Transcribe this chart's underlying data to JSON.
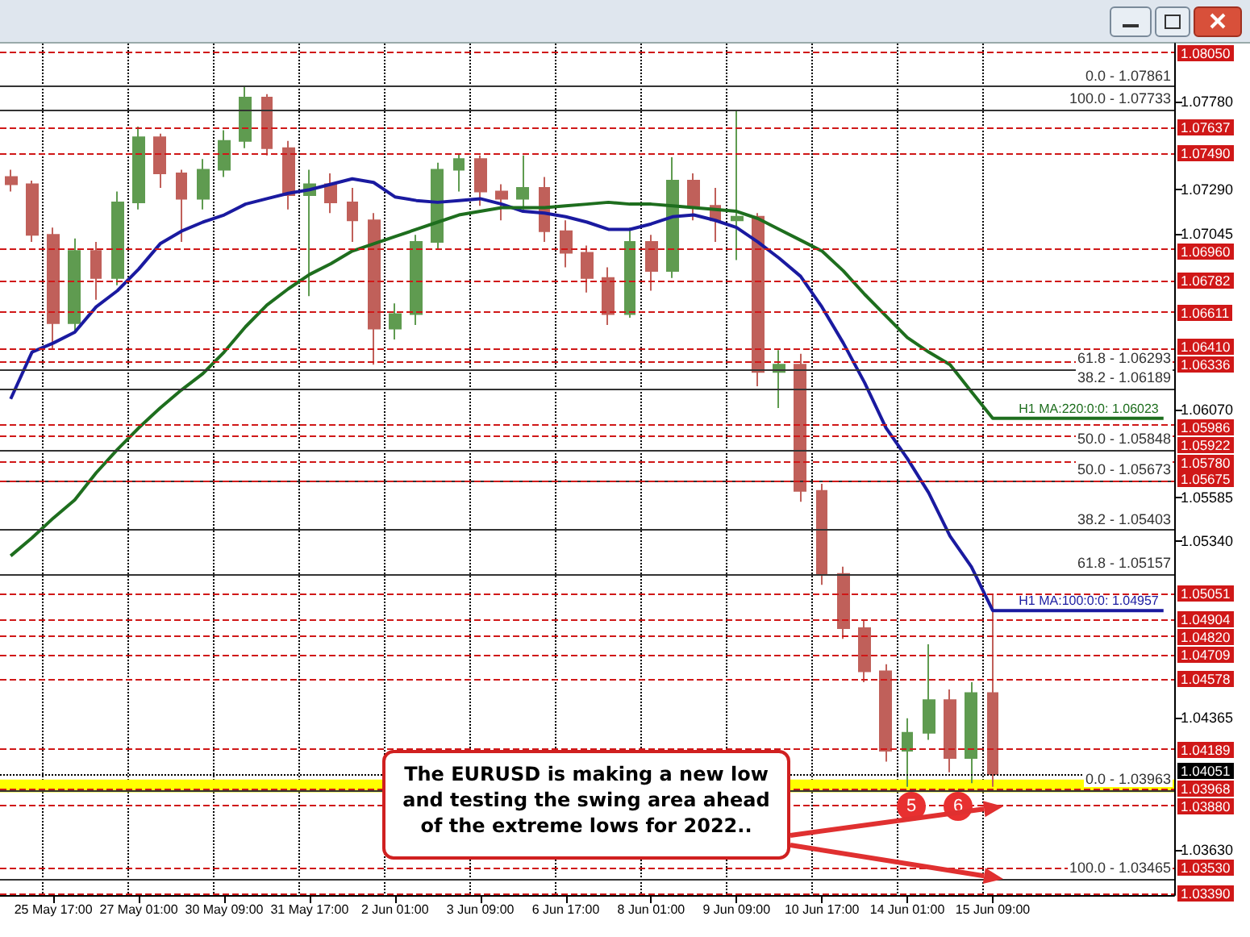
{
  "chart_data": {
    "type": "candlestick",
    "categories": [
      null,
      null,
      "25 May 17:00",
      null,
      null,
      null,
      "27 May 01:00",
      null,
      null,
      null,
      "30 May 09:00",
      null,
      null,
      null,
      "31 May 17:00",
      null,
      null,
      null,
      "2 Jun 01:00",
      null,
      null,
      null,
      "3 Jun 09:00",
      null,
      null,
      null,
      "6 Jun 17:00",
      null,
      null,
      null,
      "8 Jun 01:00",
      null,
      null,
      null,
      "9 Jun 09:00",
      null,
      null,
      null,
      "10 Jun 17:00",
      null,
      null,
      null,
      "14 Jun 01:00",
      null,
      null,
      null,
      "15 Jun 09:00",
      null,
      null,
      null,
      null,
      null,
      null,
      null,
      null
    ],
    "ohlc": [
      [
        1.0736,
        1.074,
        1.0728,
        1.0732
      ],
      [
        1.0732,
        1.0734,
        1.07,
        1.0704
      ],
      [
        1.0704,
        1.0708,
        1.0641,
        1.0655
      ],
      [
        1.0655,
        1.0702,
        1.065,
        1.0695
      ],
      [
        1.0695,
        1.07,
        1.0668,
        1.068
      ],
      [
        1.068,
        1.0728,
        1.0676,
        1.0722
      ],
      [
        1.0722,
        1.0764,
        1.0718,
        1.0758
      ],
      [
        1.0758,
        1.076,
        1.073,
        1.0738
      ],
      [
        1.0738,
        1.074,
        1.07,
        1.0724
      ],
      [
        1.0724,
        1.0746,
        1.0718,
        1.074
      ],
      [
        1.074,
        1.0762,
        1.0736,
        1.0756
      ],
      [
        1.0756,
        1.0786,
        1.0752,
        1.078
      ],
      [
        1.078,
        1.0782,
        1.0748,
        1.0752
      ],
      [
        1.0752,
        1.0756,
        1.0718,
        1.0726
      ],
      [
        1.0726,
        1.074,
        1.067,
        1.0732
      ],
      [
        1.0732,
        1.0738,
        1.0716,
        1.0722
      ],
      [
        1.0722,
        1.073,
        1.07,
        1.0712
      ],
      [
        1.0712,
        1.0716,
        1.0632,
        1.0652
      ],
      [
        1.0652,
        1.0666,
        1.0646,
        1.066
      ],
      [
        1.066,
        1.0704,
        1.0654,
        1.07
      ],
      [
        1.07,
        1.0744,
        1.0696,
        1.074
      ],
      [
        1.074,
        1.0749,
        1.0728,
        1.0746
      ],
      [
        1.0746,
        1.0748,
        1.072,
        1.0728
      ],
      [
        1.0728,
        1.0732,
        1.0712,
        1.0724
      ],
      [
        1.0724,
        1.0748,
        1.0718,
        1.073
      ],
      [
        1.073,
        1.0736,
        1.07,
        1.0706
      ],
      [
        1.0706,
        1.0712,
        1.0686,
        1.0694
      ],
      [
        1.0694,
        1.0698,
        1.0672,
        1.068
      ],
      [
        1.068,
        1.0686,
        1.0654,
        1.066
      ],
      [
        1.066,
        1.0708,
        1.0658,
        1.07
      ],
      [
        1.07,
        1.0704,
        1.0673,
        1.0684
      ],
      [
        1.0684,
        1.0747,
        1.068,
        1.0734
      ],
      [
        1.0734,
        1.0738,
        1.0712,
        1.072
      ],
      [
        1.072,
        1.073,
        1.07,
        1.0712
      ],
      [
        1.0712,
        1.0773,
        1.069,
        1.0714
      ],
      [
        1.0714,
        1.0716,
        1.062,
        1.0628
      ],
      [
        1.0628,
        1.064,
        1.0608,
        1.0632
      ],
      [
        1.0632,
        1.0638,
        1.0556,
        1.0562
      ],
      [
        1.0562,
        1.0566,
        1.051,
        1.0516
      ],
      [
        1.0516,
        1.052,
        1.048,
        1.0486
      ],
      [
        1.0486,
        1.049,
        1.0456,
        1.0462
      ],
      [
        1.0462,
        1.0466,
        1.0412,
        1.0418
      ],
      [
        1.0418,
        1.0436,
        1.0398,
        1.0428
      ],
      [
        1.0428,
        1.0477,
        1.0424,
        1.0446
      ],
      [
        1.0446,
        1.0452,
        1.0406,
        1.0414
      ],
      [
        1.0414,
        1.0456,
        1.04,
        1.045
      ],
      [
        1.045,
        1.0505,
        1.0398,
        1.0405
      ],
      null,
      null,
      null,
      null,
      null,
      null,
      null,
      null
    ],
    "colors": [
      "#c0605a",
      "#c0605a",
      "#c0605a",
      "#5f9b50",
      "#c0605a",
      "#5f9b50",
      "#5f9b50",
      "#c0605a",
      "#c0605a",
      "#5f9b50",
      "#5f9b50",
      "#5f9b50",
      "#c0605a",
      "#c0605a",
      "#5f9b50",
      "#c0605a",
      "#c0605a",
      "#c0605a",
      "#5f9b50",
      "#5f9b50",
      "#5f9b50",
      "#5f9b50",
      "#c0605a",
      "#c0605a",
      "#5f9b50",
      "#c0605a",
      "#c0605a",
      "#c0605a",
      "#c0605a",
      "#5f9b50",
      "#c0605a",
      "#5f9b50",
      "#c0605a",
      "#c0605a",
      "#5f9b50",
      "#c0605a",
      "#5f9b50",
      "#c0605a",
      "#c0605a",
      "#c0605a",
      "#c0605a",
      "#c0605a",
      "#5f9b50",
      "#5f9b50",
      "#c0605a",
      "#5f9b50",
      "#c0605a",
      null,
      null,
      null,
      null,
      null,
      null,
      null,
      null
    ],
    "series": [
      {
        "type": "line",
        "name": "H1 MA:100:0:0: 1.04957",
        "color": "#1a1aa0",
        "values": [
          1.0613,
          1.0639,
          1.0644,
          1.065,
          1.0664,
          1.0673,
          1.0685,
          1.0699,
          1.0706,
          1.0711,
          1.0715,
          1.0721,
          1.0724,
          1.0727,
          1.0729,
          1.0732,
          1.0735,
          1.0733,
          1.0725,
          1.0723,
          1.0722,
          1.0723,
          1.0724,
          1.0721,
          1.0717,
          1.0716,
          1.0714,
          1.0711,
          1.0707,
          1.0707,
          1.071,
          1.0714,
          1.0715,
          1.0712,
          1.0708,
          1.07,
          1.0691,
          1.0681,
          1.0664,
          1.0644,
          1.0622,
          1.0597,
          1.058,
          1.0561,
          1.0537,
          1.052,
          1.04957,
          1.04957,
          1.04957,
          1.04957,
          1.04957,
          1.04957,
          1.04957,
          1.04957,
          1.04957
        ]
      },
      {
        "type": "line",
        "name": "H1 MA:220:0:0: 1.06023",
        "color": "#1e6e1e",
        "values": [
          1.0526,
          1.0536,
          1.0547,
          1.0557,
          1.0572,
          1.0585,
          1.0597,
          1.0608,
          1.0618,
          1.0627,
          1.0639,
          1.0653,
          1.0665,
          1.0674,
          1.0682,
          1.0688,
          1.0695,
          1.0699,
          1.0703,
          1.0707,
          1.0711,
          1.0715,
          1.0717,
          1.0719,
          1.0719,
          1.0719,
          1.072,
          1.0721,
          1.0722,
          1.0721,
          1.0721,
          1.072,
          1.0719,
          1.0718,
          1.0717,
          1.0713,
          1.0707,
          1.0701,
          1.0695,
          1.0684,
          1.0671,
          1.0659,
          1.0647,
          1.0639,
          1.0632,
          1.0617,
          1.06023,
          1.06023,
          1.06023,
          1.06023,
          1.06023,
          1.06023,
          1.06023,
          1.06023,
          1.06023
        ]
      }
    ],
    "ylim": [
      1.0338,
      1.081
    ],
    "yticks": [
      {
        "value": 1.0778,
        "label": "1.07780"
      },
      {
        "value": 1.0729,
        "label": "1.07290"
      },
      {
        "value": 1.07045,
        "label": "1.07045"
      },
      {
        "value": 1.0607,
        "label": "1.06070"
      },
      {
        "value": 1.05585,
        "label": "1.05585"
      },
      {
        "value": 1.0534,
        "label": "1.05340"
      },
      {
        "value": 1.04365,
        "label": "1.04365"
      },
      {
        "value": 1.0363,
        "label": "1.03630"
      }
    ],
    "grid": "x",
    "ref_lines": [
      {
        "axis": "y",
        "value": 1.0805,
        "label": "1.08050",
        "color": "#d01818",
        "line_style": "dashed"
      },
      {
        "axis": "y",
        "value": 1.07637,
        "label": "1.07637",
        "color": "#d01818",
        "line_style": "dashed"
      },
      {
        "axis": "y",
        "value": 1.0749,
        "label": "1.07490",
        "color": "#d01818",
        "line_style": "dashed"
      },
      {
        "axis": "y",
        "value": 1.0696,
        "label": "1.06960",
        "color": "#d01818",
        "line_style": "dashed"
      },
      {
        "axis": "y",
        "value": 1.06782,
        "label": "1.06782",
        "color": "#d01818",
        "line_style": "dashed"
      },
      {
        "axis": "y",
        "value": 1.06611,
        "label": "1.06611",
        "color": "#d01818",
        "line_style": "dashed"
      },
      {
        "axis": "y",
        "value": 1.0641,
        "label": "1.06410",
        "color": "#d01818",
        "line_style": "dashed"
      },
      {
        "axis": "y",
        "value": 1.06336,
        "label": "1.06336",
        "color": "#d01818",
        "line_style": "dashed"
      },
      {
        "axis": "y",
        "value": 1.05986,
        "label": "1.05986",
        "color": "#d01818",
        "line_style": "dashed"
      },
      {
        "axis": "y",
        "value": 1.05922,
        "label": "1.05922",
        "color": "#d01818",
        "line_style": "dashed"
      },
      {
        "axis": "y",
        "value": 1.0578,
        "label": "1.05780",
        "color": "#d01818",
        "line_style": "dashed"
      },
      {
        "axis": "y",
        "value": 1.05675,
        "label": "1.05675",
        "color": "#d01818",
        "line_style": "dashed"
      },
      {
        "axis": "y",
        "value": 1.05051,
        "label": "1.05051",
        "color": "#d01818",
        "line_style": "dashed"
      },
      {
        "axis": "y",
        "value": 1.04904,
        "label": "1.04904",
        "color": "#d01818",
        "line_style": "dashed"
      },
      {
        "axis": "y",
        "value": 1.0482,
        "label": "1.04820",
        "color": "#d01818",
        "line_style": "dashed"
      },
      {
        "axis": "y",
        "value": 1.04709,
        "label": "1.04709",
        "color": "#d01818",
        "line_style": "dashed"
      },
      {
        "axis": "y",
        "value": 1.04578,
        "label": "1.04578",
        "color": "#d01818",
        "line_style": "dashed"
      },
      {
        "axis": "y",
        "value": 1.04189,
        "label": "1.04189",
        "color": "#d01818",
        "line_style": "dashed"
      },
      {
        "axis": "y",
        "value": 1.04051,
        "label": "1.04051",
        "color": "#000000",
        "line_style": "dotted"
      },
      {
        "axis": "y",
        "value": 1.03968,
        "label": "1.03968",
        "color": "#d01818",
        "line_style": "dashed"
      },
      {
        "axis": "y",
        "value": 1.0388,
        "label": "1.03880",
        "color": "#d01818",
        "line_style": "dashed"
      },
      {
        "axis": "y",
        "value": 1.0353,
        "label": "1.03530",
        "color": "#d01818",
        "line_style": "dashed"
      },
      {
        "axis": "y",
        "value": 1.0339,
        "label": "1.03390",
        "color": "#d01818",
        "line_style": "dashed"
      },
      {
        "axis": "y",
        "value": 1.07861,
        "color": "#333333",
        "line_style": "solid"
      },
      {
        "axis": "y",
        "value": 1.07733,
        "color": "#333333",
        "line_style": "solid"
      },
      {
        "axis": "y",
        "value": 1.06293,
        "color": "#333333",
        "line_style": "solid"
      },
      {
        "axis": "y",
        "value": 1.06189,
        "color": "#333333",
        "line_style": "solid"
      },
      {
        "axis": "y",
        "value": 1.05848,
        "color": "#333333",
        "line_style": "solid"
      },
      {
        "axis": "y",
        "value": 1.05673,
        "color": "#333333",
        "line_style": "solid"
      },
      {
        "axis": "y",
        "value": 1.05403,
        "color": "#333333",
        "line_style": "solid"
      },
      {
        "axis": "y",
        "value": 1.05157,
        "color": "#333333",
        "line_style": "solid"
      },
      {
        "axis": "y",
        "value": 1.03963,
        "color": "#333333",
        "line_style": "solid"
      },
      {
        "axis": "y",
        "value": 1.03465,
        "color": "#333333",
        "line_style": "solid"
      }
    ],
    "bands": [
      {
        "axis": "y",
        "from": 1.0395,
        "to": 1.0402,
        "color": "#ffff00"
      }
    ],
    "annotations": [
      "The EURUSD is making a new low and testing the swing area ahead of the extreme lows for 2022..",
      "5",
      "6",
      {
        "text": "0.0 - 1.07861",
        "y": 1.07861
      },
      {
        "text": "100.0 - 1.07733",
        "y": 1.07733
      },
      {
        "text": "61.8 - 1.06293",
        "y": 1.06293
      },
      {
        "text": "38.2 - 1.06189",
        "y": 1.06189
      },
      {
        "text": "50.0 - 1.05848",
        "y": 1.05848
      },
      {
        "text": "50.0 - 1.05673",
        "y": 1.05673
      },
      {
        "text": "38.2 - 1.05403",
        "y": 1.05403
      },
      {
        "text": "61.8 - 1.05157",
        "y": 1.05157
      },
      {
        "text": "0.0 - 1.03963",
        "y": 1.03963
      },
      {
        "text": "100.0 - 1.03465",
        "y": 1.03465
      }
    ]
  }
}
